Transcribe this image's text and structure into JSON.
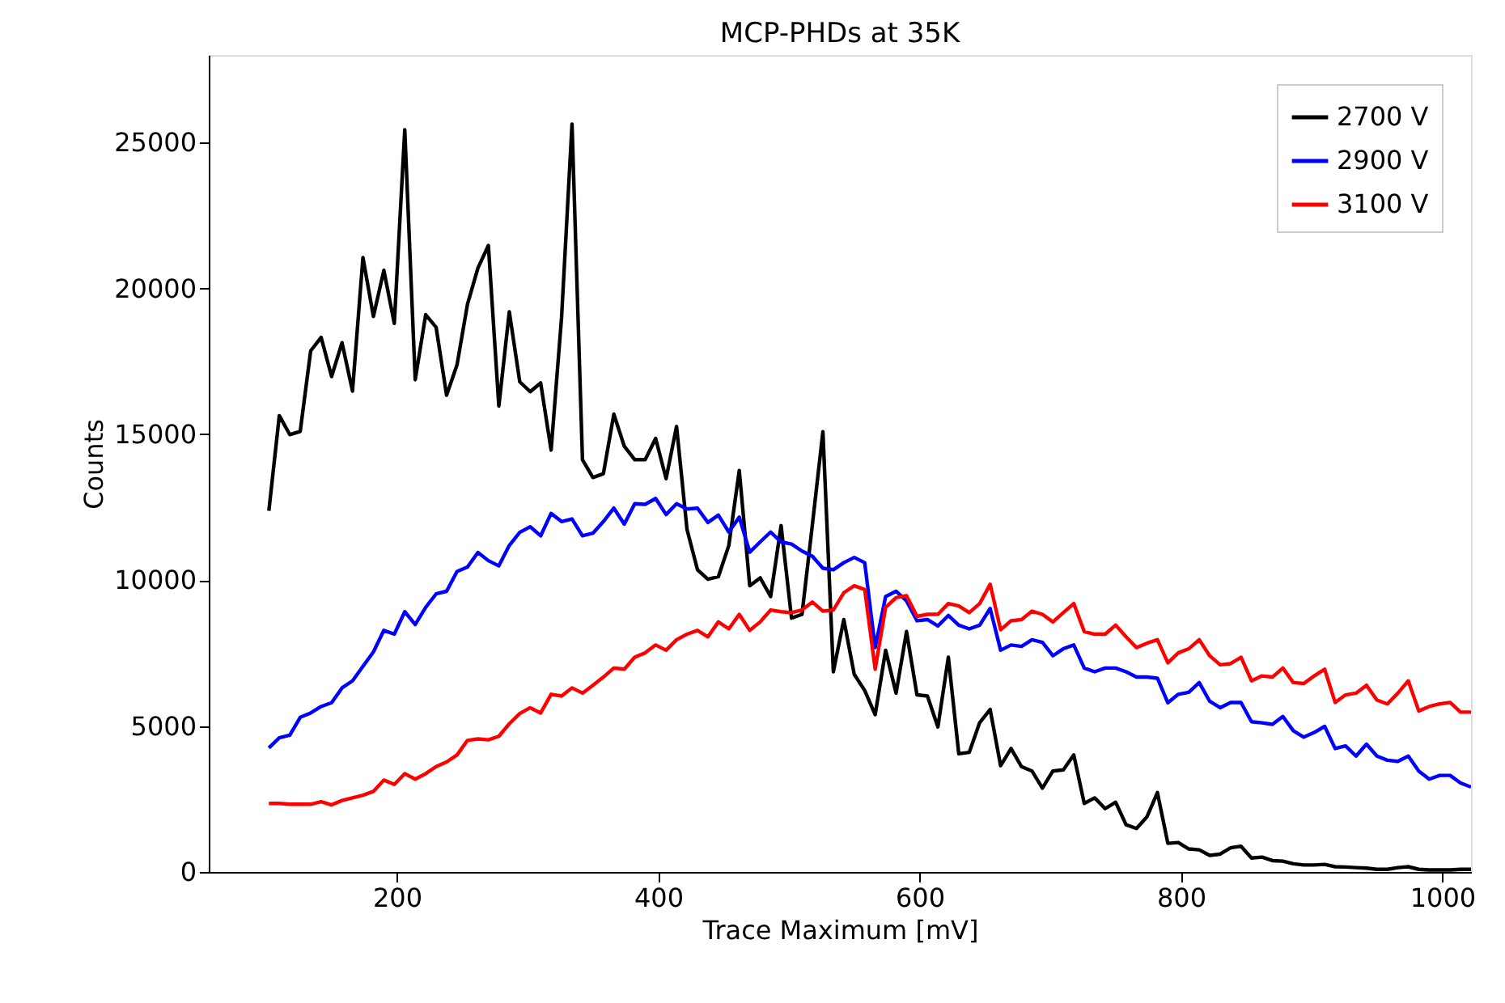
{
  "chart_data": {
    "type": "line",
    "title": "MCP-PHDs at 35K",
    "xlabel": "Trace Maximum [mV]",
    "ylabel": "Counts",
    "x": [
      102,
      110,
      118,
      126,
      134,
      142,
      150,
      158,
      166,
      174,
      182,
      190,
      198,
      206,
      214,
      222,
      230,
      238,
      246,
      254,
      262,
      270,
      278,
      286,
      294,
      302,
      310,
      318,
      326,
      334,
      342,
      350,
      358,
      366,
      374,
      382,
      390,
      398,
      406,
      414,
      422,
      430,
      438,
      446,
      454,
      462,
      470,
      478,
      486,
      494,
      502,
      510,
      518,
      526,
      534,
      542,
      550,
      558,
      566,
      574,
      582,
      590,
      598,
      606,
      614,
      622,
      630,
      638,
      646,
      654,
      662,
      670,
      678,
      686,
      694,
      702,
      710,
      718,
      726,
      734,
      742,
      750,
      758,
      766,
      774,
      782,
      790,
      798,
      806,
      814,
      822,
      830,
      838,
      846,
      854,
      862,
      870,
      878,
      886,
      894,
      902,
      910,
      918,
      926,
      934,
      942,
      950,
      958,
      966,
      974,
      982,
      990,
      998,
      1006,
      1014,
      1022
    ],
    "series": [
      {
        "name": "2700 V",
        "color": "#000000",
        "values": [
          12380,
          15640,
          14990,
          15100,
          17860,
          18320,
          16980,
          18140,
          16480,
          21060,
          19040,
          20620,
          18800,
          25440,
          16870,
          19100,
          18670,
          16340,
          17380,
          19460,
          20700,
          21470,
          15970,
          19200,
          16800,
          16460,
          16760,
          14460,
          19000,
          25630,
          14130,
          13520,
          13650,
          15690,
          14590,
          14130,
          14130,
          14860,
          13480,
          15270,
          11740,
          10360,
          10030,
          10120,
          11190,
          13760,
          9810,
          10080,
          9440,
          11870,
          8700,
          8830,
          11920,
          15090,
          6860,
          8650,
          6770,
          6220,
          5390,
          7600,
          6130,
          8240,
          6070,
          6030,
          4970,
          7360,
          4050,
          4100,
          5120,
          5570,
          3640,
          4230,
          3610,
          3460,
          2870,
          3460,
          3500,
          4010,
          2350,
          2540,
          2170,
          2390,
          1620,
          1490,
          1890,
          2720,
          980,
          1010,
          790,
          760,
          570,
          610,
          830,
          880,
          480,
          510,
          390,
          370,
          280,
          240,
          240,
          260,
          180,
          170,
          150,
          130,
          90,
          90,
          150,
          180,
          90,
          70,
          70,
          70,
          90,
          90
        ]
      },
      {
        "name": "2900 V",
        "color": "#0000ff",
        "values": [
          4250,
          4600,
          4690,
          5300,
          5450,
          5670,
          5800,
          6310,
          6550,
          7050,
          7540,
          8280,
          8150,
          8920,
          8480,
          9070,
          9530,
          9620,
          10300,
          10450,
          10950,
          10670,
          10490,
          11190,
          11640,
          11830,
          11520,
          12290,
          12010,
          12100,
          11520,
          11610,
          12010,
          12470,
          11920,
          12620,
          12600,
          12800,
          12250,
          12620,
          12440,
          12470,
          11980,
          12230,
          11650,
          12160,
          10960,
          11310,
          11650,
          11310,
          11240,
          11000,
          10820,
          10410,
          10360,
          10600,
          10780,
          10600,
          7690,
          9440,
          9620,
          9290,
          8610,
          8650,
          8430,
          8790,
          8460,
          8330,
          8460,
          9030,
          7600,
          7780,
          7730,
          7960,
          7870,
          7410,
          7650,
          7780,
          6990,
          6860,
          6990,
          6990,
          6860,
          6680,
          6680,
          6640,
          5800,
          6090,
          6160,
          6490,
          5850,
          5630,
          5810,
          5810,
          5150,
          5110,
          5060,
          5330,
          4840,
          4620,
          4780,
          4990,
          4230,
          4320,
          3970,
          4380,
          3970,
          3830,
          3790,
          3970,
          3460,
          3180,
          3310,
          3310,
          3050,
          2910
        ]
      },
      {
        "name": "3100 V",
        "color": "#ff0000",
        "values": [
          2350,
          2350,
          2320,
          2320,
          2320,
          2410,
          2300,
          2450,
          2540,
          2630,
          2760,
          3150,
          3000,
          3370,
          3180,
          3370,
          3610,
          3770,
          4010,
          4510,
          4560,
          4530,
          4650,
          5080,
          5430,
          5630,
          5450,
          6090,
          6030,
          6310,
          6130,
          6400,
          6680,
          6990,
          6950,
          7360,
          7510,
          7780,
          7600,
          7960,
          8150,
          8280,
          8060,
          8570,
          8330,
          8830,
          8280,
          8570,
          8980,
          8920,
          8890,
          8980,
          9250,
          8940,
          8980,
          9570,
          9810,
          9680,
          6950,
          9070,
          9400,
          9470,
          8760,
          8830,
          8830,
          9200,
          9120,
          8890,
          9200,
          9860,
          8300,
          8610,
          8650,
          8940,
          8830,
          8570,
          8890,
          9200,
          8240,
          8150,
          8150,
          8460,
          8060,
          7690,
          7840,
          7960,
          7170,
          7510,
          7650,
          7960,
          7410,
          7100,
          7140,
          7360,
          6550,
          6720,
          6680,
          6990,
          6490,
          6460,
          6720,
          6950,
          5810,
          6070,
          6130,
          6400,
          5890,
          5760,
          6130,
          6550,
          5520,
          5670,
          5760,
          5810,
          5480,
          5480
        ]
      }
    ],
    "xlim": [
      56,
      1022
    ],
    "xticks": [
      200,
      400,
      600,
      800,
      1000
    ],
    "ylim": [
      0,
      28000
    ],
    "yticks": [
      0,
      5000,
      10000,
      15000,
      20000,
      25000
    ],
    "legend": "top right"
  }
}
